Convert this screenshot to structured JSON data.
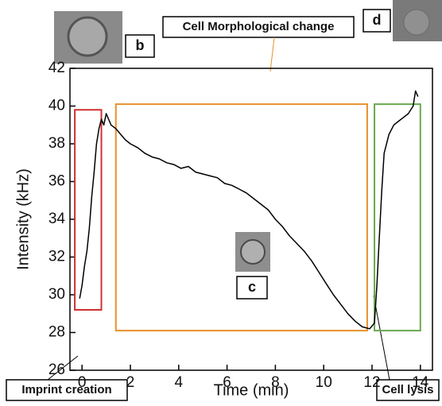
{
  "chart_data": {
    "type": "line",
    "x_label": "Time (min)",
    "y_label": "Intensity (kHz)",
    "xlim": [
      -0.5,
      14.5
    ],
    "ylim": [
      26,
      42
    ],
    "xticks": [
      0,
      2,
      4,
      6,
      8,
      10,
      12,
      14
    ],
    "yticks": [
      26,
      28,
      30,
      32,
      34,
      36,
      38,
      40,
      42
    ],
    "series": [
      {
        "color": "#000000",
        "x": [
          -0.1,
          0,
          0.1,
          0.2,
          0.3,
          0.4,
          0.5,
          0.6,
          0.7,
          0.8,
          0.9,
          1.0,
          1.2,
          1.4,
          1.6,
          1.8,
          2.0,
          2.3,
          2.6,
          2.9,
          3.2,
          3.5,
          3.8,
          4.1,
          4.4,
          4.7,
          5.0,
          5.3,
          5.6,
          5.9,
          6.2,
          6.5,
          6.8,
          7.1,
          7.4,
          7.7,
          8.0,
          8.3,
          8.6,
          8.9,
          9.2,
          9.5,
          9.8,
          10.1,
          10.4,
          10.7,
          11.0,
          11.3,
          11.6,
          11.9,
          12.1,
          12.2,
          12.3,
          12.4,
          12.5,
          12.7,
          12.9,
          13.1,
          13.3,
          13.5,
          13.7,
          13.8,
          13.9
        ],
        "values": [
          29.8,
          30.5,
          31.5,
          32.3,
          33.5,
          35.2,
          36.5,
          38.0,
          38.8,
          39.3,
          39.0,
          39.6,
          39.0,
          38.8,
          38.5,
          38.2,
          38.0,
          37.8,
          37.5,
          37.3,
          37.2,
          37.0,
          36.9,
          36.7,
          36.8,
          36.5,
          36.4,
          36.3,
          36.2,
          35.9,
          35.8,
          35.6,
          35.4,
          35.1,
          34.8,
          34.5,
          34.0,
          33.6,
          33.1,
          32.7,
          32.3,
          31.8,
          31.2,
          30.6,
          30.0,
          29.5,
          29.0,
          28.6,
          28.3,
          28.2,
          28.5,
          30.5,
          33.0,
          35.5,
          37.5,
          38.5,
          39.0,
          39.2,
          39.4,
          39.6,
          40.0,
          40.8,
          40.5
        ]
      }
    ],
    "regions": [
      {
        "x": [
          -0.3,
          0.8
        ],
        "y": [
          29.2,
          39.8
        ],
        "color": "#d03030"
      },
      {
        "x": [
          1.4,
          11.8
        ],
        "y": [
          28.1,
          40.1
        ],
        "color": "#e8902a"
      },
      {
        "x": [
          12.1,
          14.0
        ],
        "y": [
          28.1,
          40.1
        ],
        "color": "#6aa84f"
      }
    ],
    "annotations": [
      "Imprint creation",
      "Cell Morphological change",
      "Cell lysis"
    ],
    "panel_labels": [
      "b",
      "c",
      "d"
    ]
  }
}
